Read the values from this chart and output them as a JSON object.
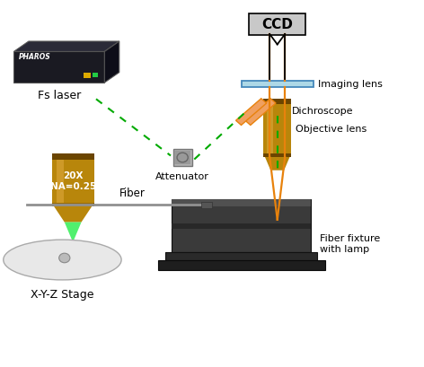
{
  "background_color": "#ffffff",
  "components": {
    "ccd_label": "CCD",
    "imaging_lens_label": "Imaging lens",
    "dichroscope_label": "Dichroscope",
    "objective_lens_label": "Objective lens",
    "fiber_label": "Fiber",
    "fiber_fixture_label": "Fiber fixture\nwith lamp",
    "attenuator_label": "Attenuator",
    "fs_laser_label": "Fs laser",
    "xyz_stage_label": "X-Y-Z Stage",
    "objective_text": "20X\nNA=0.25"
  },
  "colors": {
    "orange": "#E8820C",
    "green_dashed": "#00AA00",
    "blue_lens": "#ADD8E6",
    "ccd_box": "#C8C8C8",
    "gold": "#B8860B",
    "gold_light": "#D4A030",
    "gold_dark": "#6B4500",
    "stage_dark": "#383838",
    "stage_mid": "#484848",
    "stage_light": "#585858",
    "white_text": "#FFFFFF",
    "black": "#000000",
    "gray_att": "#A0A0A0",
    "laser_front": "#1a1a1e",
    "laser_top": "#2a2a3a",
    "laser_right": "#0d0d15"
  },
  "layout": {
    "xlim": [
      0,
      10
    ],
    "ylim": [
      0,
      10
    ],
    "figw": 4.72,
    "figh": 4.1,
    "dpi": 100
  }
}
